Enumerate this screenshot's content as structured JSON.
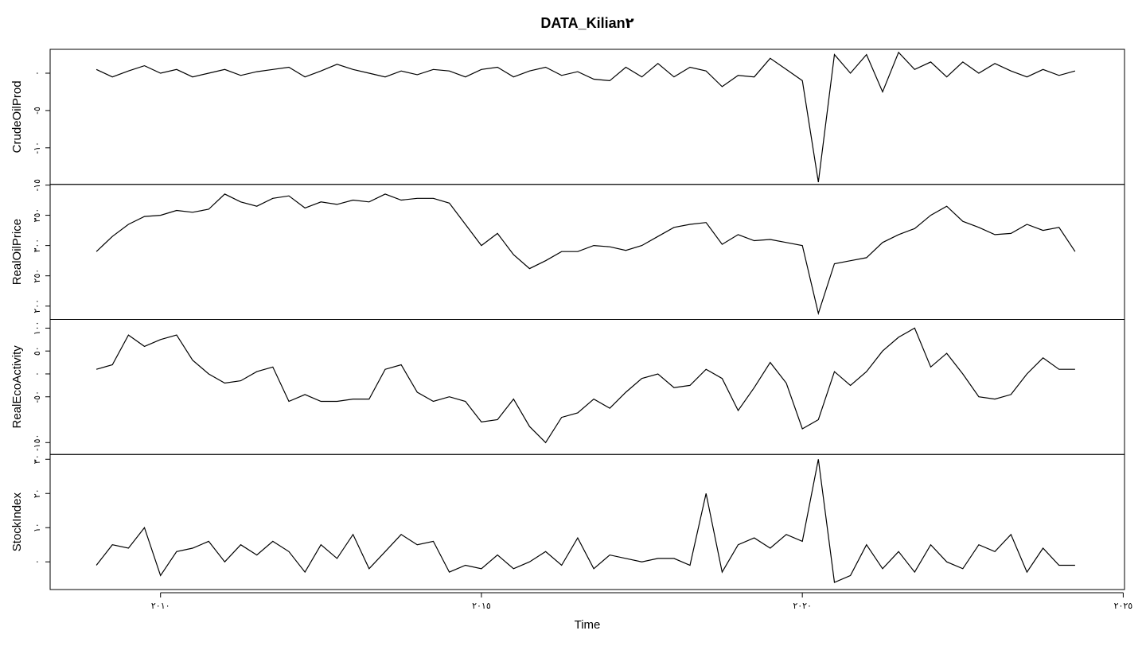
{
  "chart_data": {
    "type": "line",
    "title": "DATA_Kilian٢",
    "xlabel": "Time",
    "xlim": [
      2008.28,
      2025.02
    ],
    "xticks": [
      {
        "value": 2010,
        "label": "٢٠١٠"
      },
      {
        "value": 2015,
        "label": "٢٠١٥"
      },
      {
        "value": 2020,
        "label": "٢٠٢٠"
      },
      {
        "value": 2025,
        "label": "٢٠٢٥"
      }
    ],
    "x": [
      2009,
      2009.25,
      2009.5,
      2009.75,
      2010,
      2010.25,
      2010.5,
      2010.75,
      2011,
      2011.25,
      2011.5,
      2011.75,
      2012,
      2012.25,
      2012.5,
      2012.75,
      2013,
      2013.25,
      2013.5,
      2013.75,
      2014,
      2014.25,
      2014.5,
      2014.75,
      2015,
      2015.25,
      2015.5,
      2015.75,
      2016,
      2016.25,
      2016.5,
      2016.75,
      2017,
      2017.25,
      2017.5,
      2017.75,
      2018,
      2018.25,
      2018.5,
      2018.75,
      2019,
      2019.25,
      2019.5,
      2019.75,
      2020,
      2020.25,
      2020.5,
      2020.75,
      2021,
      2021.25,
      2021.5,
      2021.75,
      2022,
      2022.25,
      2022.5,
      2022.75,
      2023,
      2023.25,
      2023.5,
      2023.75,
      2024,
      2024.25
    ],
    "color": "#000000",
    "panels": [
      {
        "ylabel": "CrudeOilProd",
        "ylim": [
          -14.9,
          3.2
        ],
        "yticks": [
          {
            "value": 0,
            "label": "٠"
          },
          {
            "value": -5,
            "label": "-٥"
          },
          {
            "value": -10,
            "label": "-١٠"
          },
          {
            "value": -15,
            "label": "-١٥"
          }
        ],
        "values": [
          0.5,
          -0.5,
          0.3,
          1.0,
          0.0,
          0.5,
          -0.5,
          0.0,
          0.5,
          -0.3,
          0.2,
          0.5,
          0.8,
          -0.5,
          0.3,
          1.2,
          0.5,
          0.0,
          -0.5,
          0.3,
          -0.2,
          0.5,
          0.3,
          -0.5,
          0.5,
          0.8,
          -0.5,
          0.3,
          0.8,
          -0.3,
          0.2,
          -0.8,
          -1.0,
          0.8,
          -0.5,
          1.3,
          -0.5,
          0.8,
          0.3,
          -1.8,
          -0.3,
          -0.5,
          2.0,
          0.5,
          -1.0,
          -14.6,
          2.5,
          0.0,
          2.5,
          -2.5,
          2.8,
          0.5,
          1.5,
          -0.5,
          1.5,
          0.0,
          1.3,
          0.3,
          -0.5,
          0.5,
          -0.3,
          0.3
        ]
      },
      {
        "ylabel": "RealOilPrice",
        "ylim": [
          178,
          401
        ],
        "yticks": [
          {
            "value": 200,
            "label": "٢٠٠"
          },
          {
            "value": 250,
            "label": "٢٥٠"
          },
          {
            "value": 300,
            "label": "٣٠٠"
          },
          {
            "value": 350,
            "label": "٣٥٠"
          }
        ],
        "values": [
          290,
          315,
          335,
          348,
          350,
          358,
          355,
          360,
          385,
          372,
          365,
          378,
          382,
          362,
          372,
          368,
          375,
          372,
          385,
          375,
          378,
          378,
          370,
          335,
          300,
          320,
          285,
          262,
          275,
          290,
          290,
          300,
          298,
          292,
          300,
          315,
          330,
          335,
          338,
          302,
          318,
          308,
          310,
          305,
          300,
          188,
          270,
          275,
          280,
          305,
          318,
          328,
          350,
          365,
          340,
          330,
          318,
          320,
          335,
          325,
          330,
          290
        ]
      },
      {
        "ylabel": "RealEcoActivity",
        "ylim": [
          -176,
          119
        ],
        "yticks": [
          {
            "value": 100,
            "label": "١٠٠"
          },
          {
            "value": 50,
            "label": "٥٠"
          },
          {
            "value": 0,
            "label": "٠"
          },
          {
            "value": -50,
            "label": "-٥٠"
          },
          {
            "value": -150,
            "label": "-١٥٠"
          }
        ],
        "values": [
          10,
          20,
          85,
          60,
          75,
          85,
          30,
          0,
          -20,
          -15,
          5,
          15,
          -60,
          -45,
          -60,
          -60,
          -55,
          -55,
          10,
          20,
          -40,
          -60,
          -50,
          -60,
          -105,
          -100,
          -55,
          -115,
          -150,
          -95,
          -85,
          -55,
          -75,
          -40,
          -10,
          0,
          -30,
          -25,
          10,
          -10,
          -80,
          -30,
          25,
          -20,
          -120,
          -100,
          5,
          -25,
          5,
          50,
          80,
          100,
          15,
          45,
          0,
          -50,
          -55,
          -45,
          0,
          35,
          10,
          10
        ]
      },
      {
        "ylabel": "StockIndex",
        "ylim": [
          -8.1,
          31.4
        ],
        "yticks": [
          {
            "value": 0,
            "label": "٠"
          },
          {
            "value": 10,
            "label": "١٠"
          },
          {
            "value": 20,
            "label": "٢٠"
          },
          {
            "value": 30,
            "label": "٣٠"
          }
        ],
        "values": [
          -1,
          5,
          4,
          10,
          -4,
          3,
          4,
          6,
          0,
          5,
          2,
          6,
          3,
          -3,
          5,
          1,
          8,
          -2,
          3,
          8,
          5,
          6,
          -3,
          -1,
          -2,
          2,
          -2,
          0,
          3,
          -1,
          7,
          -2,
          2,
          1,
          0,
          1,
          1,
          -1,
          20,
          -3,
          5,
          7,
          4,
          8,
          6,
          30,
          -6,
          -4,
          5,
          -2,
          3,
          -3,
          5,
          0,
          -2,
          5,
          3,
          8,
          -3,
          4,
          -1,
          -1
        ]
      }
    ]
  }
}
